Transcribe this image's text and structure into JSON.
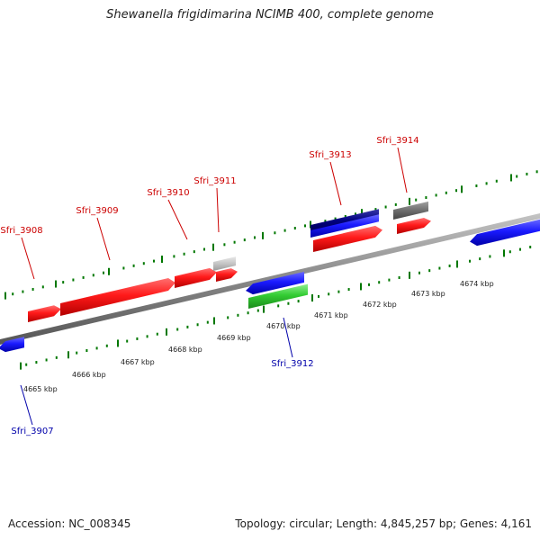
{
  "title": "Shewanella frigidimarina NCIMB 400, complete genome",
  "footer": {
    "accession": "Accession: NC_008345",
    "stats": "Topology: circular; Length: 4,845,257 bp; Genes: 4,161"
  },
  "scale": {
    "ticks": [
      {
        "label": "4665 kbp"
      },
      {
        "label": "4666 kbp"
      },
      {
        "label": "4667 kbp"
      },
      {
        "label": "4668 kbp"
      },
      {
        "label": "4669 kbp"
      },
      {
        "label": "4670 kbp"
      },
      {
        "label": "4671 kbp"
      },
      {
        "label": "4672 kbp"
      },
      {
        "label": "4673 kbp"
      },
      {
        "label": "4674 kbp"
      }
    ]
  },
  "genes": [
    {
      "label": "Sfri_3907",
      "color": "#0000aa",
      "strand": "reverse"
    },
    {
      "label": "Sfri_3908",
      "color": "#cc0000",
      "strand": "forward"
    },
    {
      "label": "Sfri_3909",
      "color": "#cc0000",
      "strand": "forward"
    },
    {
      "label": "Sfri_3910",
      "color": "#cc0000",
      "strand": "forward"
    },
    {
      "label": "Sfri_3911",
      "color": "#cc0000",
      "strand": "forward"
    },
    {
      "label": "Sfri_3912",
      "color": "#0000aa",
      "strand": "reverse"
    },
    {
      "label": "Sfri_3913",
      "color": "#cc0000",
      "strand": "forward"
    },
    {
      "label": "Sfri_3914",
      "color": "#cc0000",
      "strand": "forward"
    }
  ],
  "colors": {
    "forward_gene": "#ff2020",
    "reverse_gene": "#1a1aff",
    "rna_gene": "#33cc33",
    "pseudo_gene": "#bdbdbd",
    "dark_gene": "#6e6e6e",
    "navy_gene": "#000080",
    "backbone": "#888888",
    "tick": "#007700",
    "forward_label": "#cc0000",
    "reverse_label": "#0000aa"
  }
}
